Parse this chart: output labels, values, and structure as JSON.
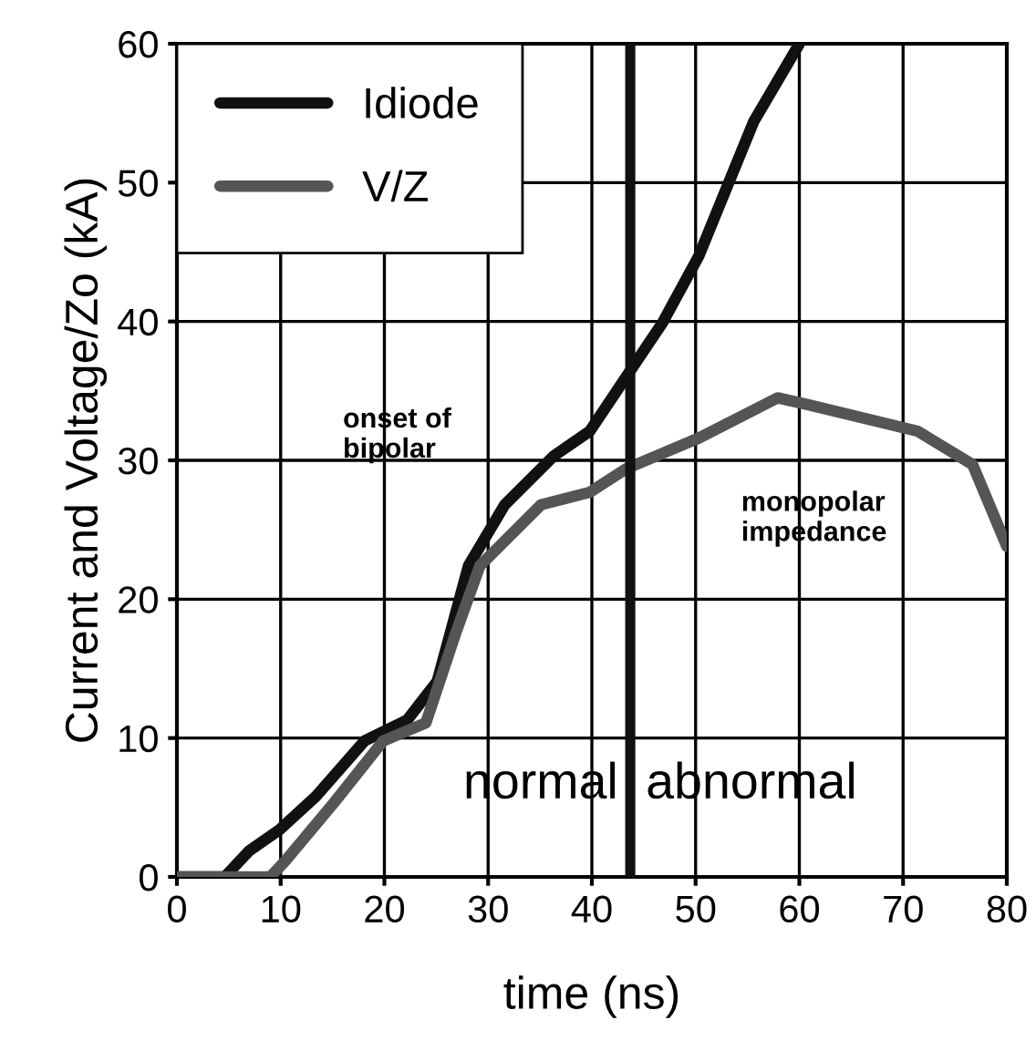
{
  "chart_data": {
    "type": "line",
    "xlabel": "time (ns)",
    "ylabel": "Current and Voltage/Zo (kA)",
    "xlim": [
      0,
      80
    ],
    "ylim": [
      0,
      60
    ],
    "xticks": [
      0,
      10,
      20,
      30,
      40,
      50,
      60,
      70,
      80
    ],
    "yticks": [
      0,
      10,
      20,
      30,
      40,
      50,
      60
    ],
    "grid": true,
    "legend": "top left",
    "line_style": "solid",
    "marker": "none",
    "series": [
      {
        "name": "Idiode",
        "color": "#111111",
        "x": [
          0,
          4.6,
          7,
          9.9,
          13.4,
          18.1,
          22.2,
          25.1,
          28.1,
          31.6,
          36.3,
          39.8,
          43.3,
          46.8,
          50.3,
          52.7,
          55.6,
          60
        ],
        "values": [
          0,
          0,
          1.9,
          3.4,
          5.8,
          9.8,
          11.3,
          14.1,
          22.4,
          26.8,
          30.3,
          32.1,
          36.0,
          39.9,
          44.7,
          49.1,
          54.4,
          60
        ]
      },
      {
        "name": "V/Z",
        "color": "#555555",
        "x": [
          0,
          9.0,
          10.5,
          15.2,
          19.9,
          24,
          26.9,
          29.2,
          35.1,
          39.8,
          43.3,
          50.3,
          57.9,
          60.9,
          71.4,
          76.7,
          80
        ],
        "values": [
          0,
          0,
          1.2,
          5.4,
          9.8,
          11.1,
          17.6,
          22.4,
          26.8,
          27.7,
          29.4,
          31.6,
          34.5,
          34.0,
          32.1,
          29.7,
          23.8
        ]
      }
    ],
    "ref_lines": [
      {
        "axis": "x",
        "value": 43.7,
        "color": "#111111",
        "line_style": "solid"
      }
    ],
    "annotations": [
      "onset of\nbipolar",
      "monopolar\nimpedance",
      "normal",
      "abnormal"
    ]
  }
}
